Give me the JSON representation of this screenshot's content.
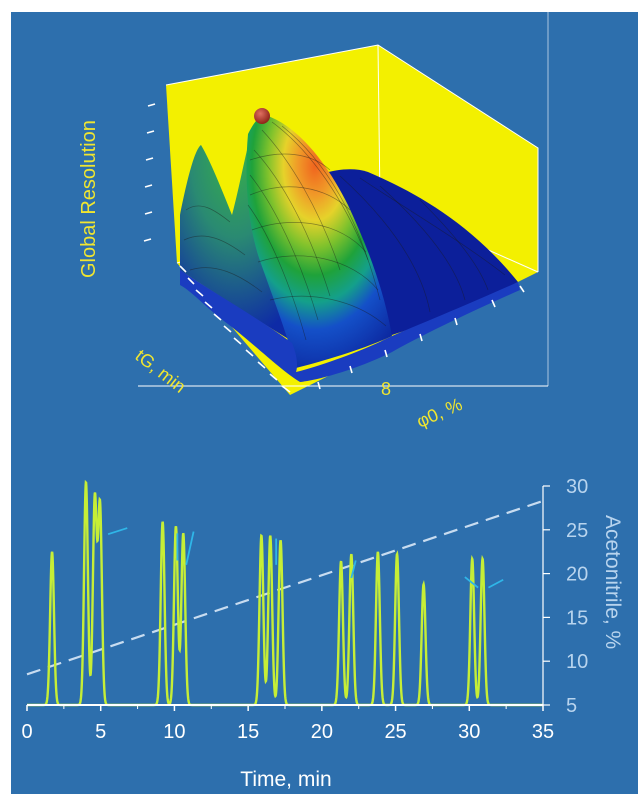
{
  "surface_plot": {
    "z_label": "Global Resolution",
    "x_label": "tG, min",
    "y_label": "φ0, %",
    "y_tick": "8",
    "colors": {
      "background": "#2d6fad",
      "label_yellow": "#f0e630",
      "back_walls": "#f3f000",
      "optimum_marker": "#b83a2a"
    }
  },
  "chart_data": {
    "type": "line",
    "xlabel": "Time, min",
    "ylabel_right": "Acetonitrile, %",
    "xlim": [
      0,
      35
    ],
    "x_ticks": [
      0,
      5,
      10,
      15,
      20,
      25,
      30,
      35
    ],
    "y_right_lim": [
      5,
      30
    ],
    "y_right_ticks": [
      5,
      10,
      15,
      20,
      25,
      30
    ],
    "colors": {
      "chromatogram": "#c6ee36",
      "gradient": "#c8dcf0",
      "axis": "#ffffff"
    },
    "series": [
      {
        "style": "peaks",
        "peaks": [
          {
            "t": 1.7,
            "height": 0.66
          },
          {
            "t": 4.0,
            "height": 0.96
          },
          {
            "t": 4.6,
            "height": 0.89
          },
          {
            "t": 4.95,
            "height": 0.86
          },
          {
            "t": 9.2,
            "height": 0.79
          },
          {
            "t": 10.1,
            "height": 0.77
          },
          {
            "t": 10.6,
            "height": 0.74
          },
          {
            "t": 15.9,
            "height": 0.73
          },
          {
            "t": 16.5,
            "height": 0.73
          },
          {
            "t": 17.2,
            "height": 0.71
          },
          {
            "t": 21.3,
            "height": 0.62
          },
          {
            "t": 22.0,
            "height": 0.65
          },
          {
            "t": 23.8,
            "height": 0.66
          },
          {
            "t": 25.1,
            "height": 0.65
          },
          {
            "t": 26.9,
            "height": 0.52
          },
          {
            "t": 30.2,
            "height": 0.63
          },
          {
            "t": 30.9,
            "height": 0.63
          }
        ]
      },
      {
        "style": "dashed",
        "x": [
          0,
          35
        ],
        "y": [
          8.5,
          28.3
        ]
      }
    ],
    "pair_markers": [
      {
        "x1": 5.5,
        "y1": 24.5,
        "x2": 6.8,
        "y2": 25.2
      },
      {
        "x1": 10.2,
        "y1": 21.5,
        "x2": 10.2,
        "y2": 24.6
      },
      {
        "x1": 10.8,
        "y1": 21.0,
        "x2": 11.3,
        "y2": 24.8
      },
      {
        "x1": 16.9,
        "y1": 21.0,
        "x2": 16.9,
        "y2": 24.0
      },
      {
        "x1": 22.0,
        "y1": 19.5,
        "x2": 22.3,
        "y2": 21.5
      },
      {
        "x1": 29.7,
        "y1": 19.6,
        "x2": 30.6,
        "y2": 18.4
      },
      {
        "x1": 31.3,
        "y1": 18.4,
        "x2": 32.3,
        "y2": 19.3
      }
    ]
  }
}
